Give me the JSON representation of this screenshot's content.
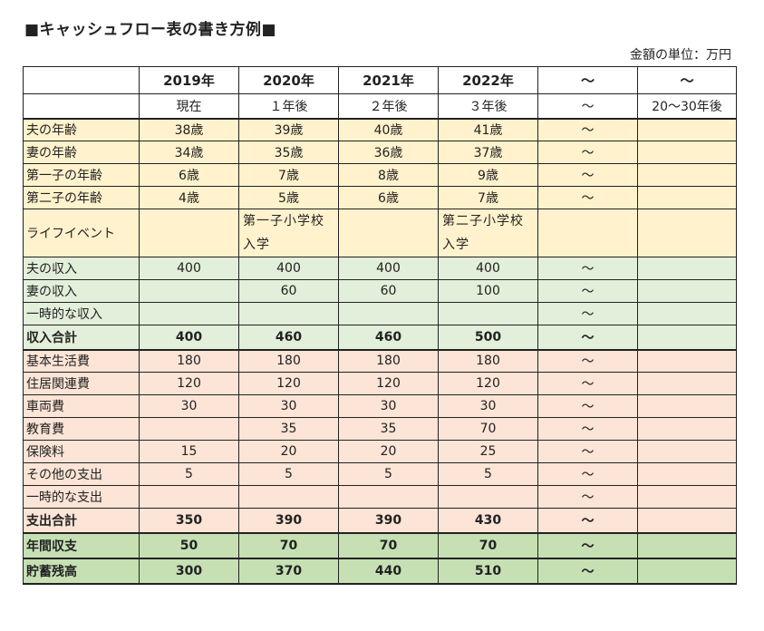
{
  "title": "■キャッシュフロー表の書き方例■",
  "unit_label": "金額の単位：万円",
  "header": {
    "years": [
      "2019年",
      "2020年",
      "2021年",
      "2022年",
      "〜",
      "〜"
    ],
    "relative": [
      "現在",
      "１年後",
      "２年後",
      "３年後",
      "〜",
      "20〜30年後"
    ]
  },
  "rows": [
    {
      "label": "夫の年齢",
      "values": [
        "38歳",
        "39歳",
        "40歳",
        "41歳",
        "〜",
        ""
      ]
    },
    {
      "label": "妻の年齢",
      "values": [
        "34歳",
        "35歳",
        "36歳",
        "37歳",
        "〜",
        ""
      ]
    },
    {
      "label": "第一子の年齢",
      "values": [
        "6歳",
        "7歳",
        "8歳",
        "9歳",
        "〜",
        ""
      ]
    },
    {
      "label": "第二子の年齢",
      "values": [
        "4歳",
        "5歳",
        "6歳",
        "7歳",
        "〜",
        ""
      ]
    },
    {
      "label": "ライフイベント",
      "values": [
        "",
        "第一子小学校入学",
        "",
        "第二子小学校入学",
        "",
        ""
      ]
    },
    {
      "label": "夫の収入",
      "values": [
        "400",
        "400",
        "400",
        "400",
        "〜",
        ""
      ]
    },
    {
      "label": "妻の収入",
      "values": [
        "",
        "60",
        "60",
        "100",
        "〜",
        ""
      ]
    },
    {
      "label": "一時的な収入",
      "values": [
        "",
        "",
        "",
        "",
        "〜",
        ""
      ]
    },
    {
      "label": "収入合計",
      "values": [
        "400",
        "460",
        "460",
        "500",
        "〜",
        ""
      ]
    },
    {
      "label": "基本生活費",
      "values": [
        "180",
        "180",
        "180",
        "180",
        "〜",
        ""
      ]
    },
    {
      "label": "住居関連費",
      "values": [
        "120",
        "120",
        "120",
        "120",
        "〜",
        ""
      ]
    },
    {
      "label": "車両費",
      "values": [
        "30",
        "30",
        "30",
        "30",
        "〜",
        ""
      ]
    },
    {
      "label": "教育費",
      "values": [
        "",
        "35",
        "35",
        "70",
        "〜",
        ""
      ]
    },
    {
      "label": "保険料",
      "values": [
        "15",
        "20",
        "20",
        "25",
        "〜",
        ""
      ]
    },
    {
      "label": "その他の支出",
      "values": [
        "5",
        "5",
        "5",
        "5",
        "〜",
        ""
      ]
    },
    {
      "label": "一時的な支出",
      "values": [
        "",
        "",
        "",
        "",
        "〜",
        ""
      ]
    },
    {
      "label": "支出合計",
      "values": [
        "350",
        "390",
        "390",
        "430",
        "〜",
        ""
      ]
    },
    {
      "label": "年間収支",
      "values": [
        "50",
        "70",
        "70",
        "70",
        "〜",
        ""
      ]
    },
    {
      "label": "貯蓄残高",
      "values": [
        "300",
        "370",
        "440",
        "510",
        "〜",
        ""
      ]
    }
  ],
  "colors": {
    "age_bg": "#fff2cc",
    "income_bg": "#e2efda",
    "expense_bg": "#fce4d6",
    "balance_bg": "#c6e0b4"
  }
}
